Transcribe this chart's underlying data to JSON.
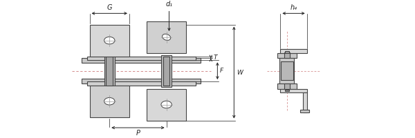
{
  "figsize": [
    6.0,
    2.0
  ],
  "dpi": 100,
  "lc": "#444444",
  "fc_plate": "#d4d4d4",
  "fc_inner": "#c0c0c0",
  "fc_roller": "#b0b0b0",
  "fc_pin": "#a0a0a0",
  "dc": "#cc6666",
  "dimc": "#222222",
  "labels": {
    "G": "G",
    "d1": "d₁",
    "T": "T",
    "F": "F",
    "W": "W",
    "P": "P",
    "h4": "h₄"
  },
  "xlim": [
    0,
    600
  ],
  "ylim": [
    0,
    200
  ]
}
